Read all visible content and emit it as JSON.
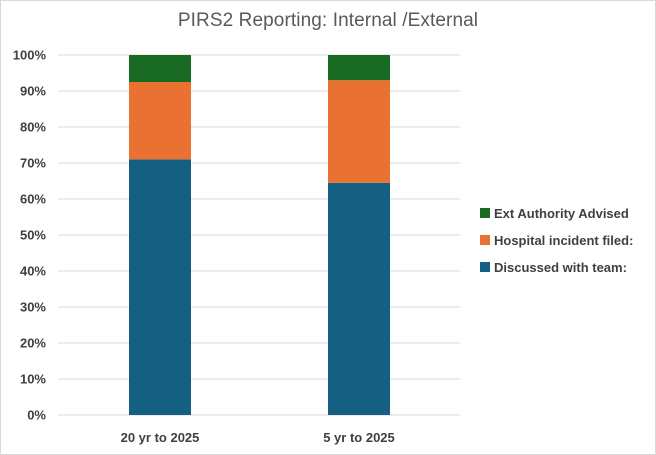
{
  "chart_data": {
    "type": "bar",
    "stacked": true,
    "title": "PIRS2 Reporting: Internal /External",
    "xlabel": "",
    "ylabel": "",
    "categories": [
      "20 yr to 2025",
      "5 yr to 2025"
    ],
    "ylim": [
      0,
      100
    ],
    "y_ticks": [
      0,
      10,
      20,
      30,
      40,
      50,
      60,
      70,
      80,
      90,
      100
    ],
    "y_tick_format": "%",
    "grid": true,
    "legend_position": "right",
    "series": [
      {
        "name": "Discussed with team:",
        "color": "#156082",
        "values": [
          71,
          64.5
        ]
      },
      {
        "name": "Hospital incident filed:",
        "color": "#E97132",
        "values": [
          21.5,
          28.5
        ]
      },
      {
        "name": "Ext Authority Advised",
        "color": "#196B24",
        "values": [
          7.5,
          7
        ]
      }
    ]
  }
}
